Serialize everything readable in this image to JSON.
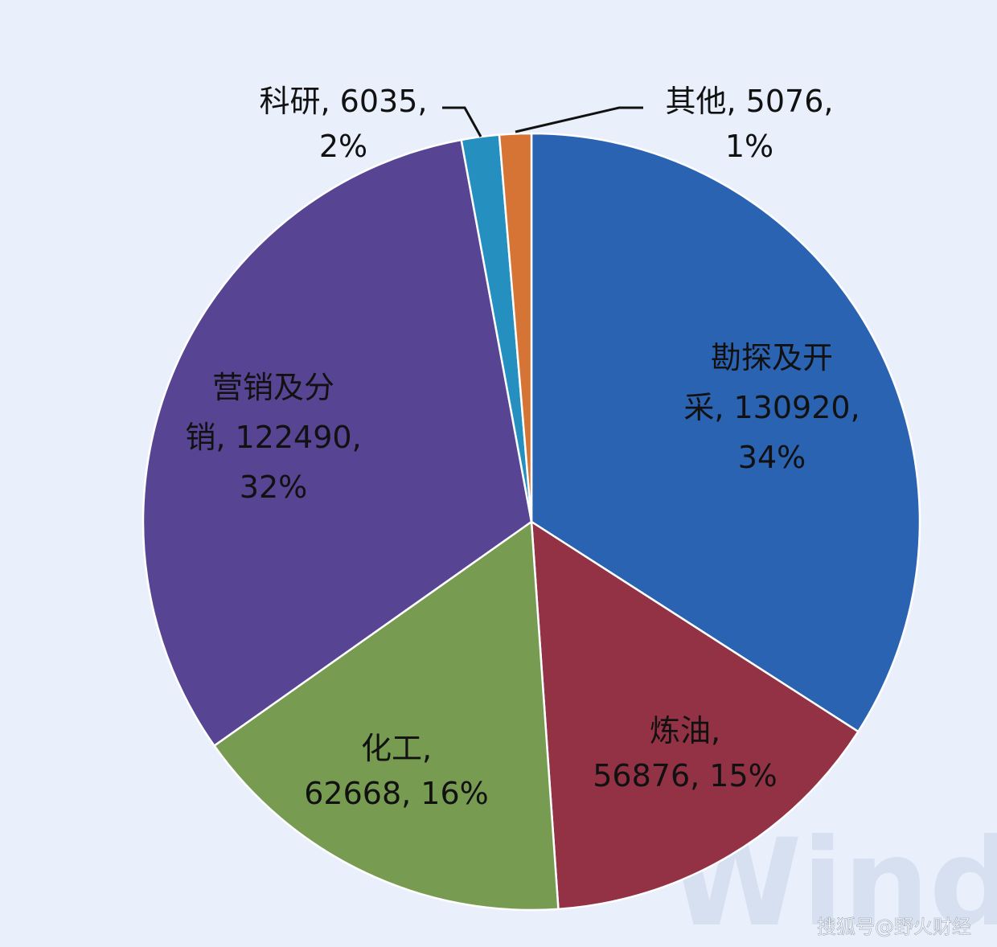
{
  "chart_data": {
    "type": "pie",
    "title": "",
    "start_angle_deg": 0,
    "direction": "clockwise",
    "legend": "none",
    "slices": [
      {
        "label": "勘探及开采",
        "value": 130920,
        "percent": "34%",
        "color": "#2b63b3"
      },
      {
        "label": "炼油",
        "value": 56876,
        "percent": "15%",
        "color": "#943245"
      },
      {
        "label": "化工",
        "value": 62668,
        "percent": "16%",
        "color": "#779c51"
      },
      {
        "label": "营销及分销",
        "value": 122490,
        "percent": "32%",
        "color": "#574594"
      },
      {
        "label": "科研",
        "value": 6035,
        "percent": "2%",
        "color": "#2590c0"
      },
      {
        "label": "其他",
        "value": 5076,
        "percent": "1%",
        "color": "#d67436"
      }
    ],
    "data_labels": [
      {
        "lines": [
          "勘探及开",
          "采, 130920,",
          "34%"
        ]
      },
      {
        "lines": [
          "炼油,",
          "56876, 15%"
        ]
      },
      {
        "lines": [
          "化工,",
          "62668, 16%"
        ]
      },
      {
        "lines": [
          "营销及分",
          "销, 122490,",
          "32%"
        ]
      },
      {
        "lines": [
          "科研, 6035,",
          "2%"
        ]
      },
      {
        "lines": [
          "其他, 5076,",
          "1%"
        ]
      }
    ]
  },
  "watermark": {
    "logo_text": "Wind"
  },
  "credit": {
    "text": "搜狐号@野火财经"
  }
}
